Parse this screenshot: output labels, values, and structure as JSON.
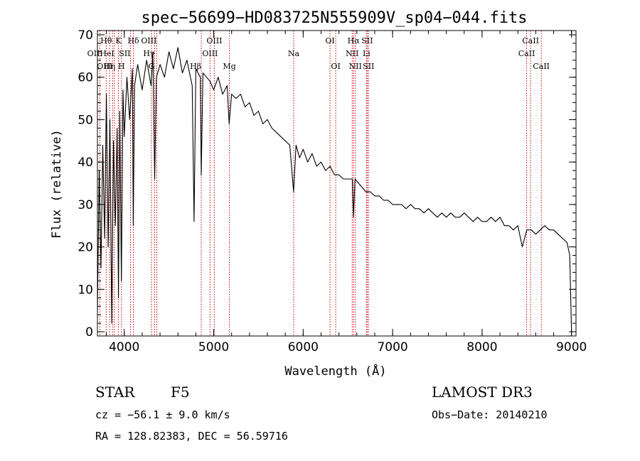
{
  "chart_data": {
    "type": "line",
    "title": "spec−56699−HD083725N555909V_sp04−044.fits",
    "xlabel": "Wavelength (Å)",
    "ylabel": "Flux (relative)",
    "xlim": [
      3700,
      9050
    ],
    "ylim": [
      -1,
      71
    ],
    "x_ticks": [
      4000,
      5000,
      6000,
      7000,
      8000,
      9000
    ],
    "y_ticks": [
      0,
      10,
      20,
      30,
      40,
      50,
      60,
      70
    ],
    "series": [
      {
        "name": "flux",
        "color": "#000000",
        "points": [
          [
            3700,
            5
          ],
          [
            3720,
            38
          ],
          [
            3740,
            15
          ],
          [
            3760,
            44
          ],
          [
            3780,
            22
          ],
          [
            3800,
            56
          ],
          [
            3820,
            20
          ],
          [
            3840,
            50
          ],
          [
            3860,
            2
          ],
          [
            3880,
            45
          ],
          [
            3900,
            25
          ],
          [
            3920,
            48
          ],
          [
            3935,
            8
          ],
          [
            3950,
            52
          ],
          [
            3968,
            12
          ],
          [
            3985,
            57
          ],
          [
            4000,
            46
          ],
          [
            4030,
            60
          ],
          [
            4060,
            50
          ],
          [
            4090,
            62
          ],
          [
            4101,
            25
          ],
          [
            4115,
            58
          ],
          [
            4150,
            63
          ],
          [
            4200,
            57
          ],
          [
            4250,
            64
          ],
          [
            4300,
            58
          ],
          [
            4320,
            66
          ],
          [
            4340,
            36
          ],
          [
            4360,
            60
          ],
          [
            4400,
            63
          ],
          [
            4450,
            60
          ],
          [
            4500,
            66
          ],
          [
            4550,
            62
          ],
          [
            4600,
            67
          ],
          [
            4650,
            61
          ],
          [
            4700,
            64
          ],
          [
            4760,
            58
          ],
          [
            4780,
            26
          ],
          [
            4800,
            62
          ],
          [
            4850,
            60
          ],
          [
            4861,
            37
          ],
          [
            4880,
            61
          ],
          [
            4920,
            60
          ],
          [
            4960,
            59
          ],
          [
            5000,
            57
          ],
          [
            5050,
            60
          ],
          [
            5100,
            56
          ],
          [
            5150,
            58
          ],
          [
            5172,
            49
          ],
          [
            5200,
            56
          ],
          [
            5250,
            55
          ],
          [
            5300,
            56
          ],
          [
            5350,
            53
          ],
          [
            5400,
            54
          ],
          [
            5450,
            51
          ],
          [
            5500,
            52
          ],
          [
            5550,
            49
          ],
          [
            5600,
            50
          ],
          [
            5650,
            48
          ],
          [
            5700,
            47
          ],
          [
            5750,
            46
          ],
          [
            5800,
            45
          ],
          [
            5850,
            44
          ],
          [
            5893,
            33
          ],
          [
            5920,
            44
          ],
          [
            5960,
            41
          ],
          [
            6000,
            43
          ],
          [
            6050,
            40
          ],
          [
            6100,
            42
          ],
          [
            6150,
            39
          ],
          [
            6200,
            40
          ],
          [
            6250,
            38
          ],
          [
            6300,
            39
          ],
          [
            6350,
            37
          ],
          [
            6400,
            37
          ],
          [
            6450,
            36
          ],
          [
            6500,
            36
          ],
          [
            6550,
            36
          ],
          [
            6563,
            27
          ],
          [
            6580,
            36
          ],
          [
            6620,
            35
          ],
          [
            6660,
            34
          ],
          [
            6700,
            33
          ],
          [
            6750,
            33
          ],
          [
            6800,
            32
          ],
          [
            6850,
            32
          ],
          [
            6900,
            31
          ],
          [
            6950,
            31
          ],
          [
            7000,
            30
          ],
          [
            7050,
            30
          ],
          [
            7100,
            30
          ],
          [
            7150,
            29
          ],
          [
            7200,
            30
          ],
          [
            7250,
            29
          ],
          [
            7300,
            29
          ],
          [
            7350,
            28
          ],
          [
            7400,
            29
          ],
          [
            7450,
            28
          ],
          [
            7500,
            27
          ],
          [
            7550,
            28
          ],
          [
            7600,
            27
          ],
          [
            7650,
            28
          ],
          [
            7700,
            27
          ],
          [
            7750,
            27
          ],
          [
            7800,
            28
          ],
          [
            7850,
            27
          ],
          [
            7900,
            26
          ],
          [
            7950,
            27
          ],
          [
            8000,
            26
          ],
          [
            8050,
            26
          ],
          [
            8100,
            27
          ],
          [
            8150,
            26
          ],
          [
            8200,
            27
          ],
          [
            8250,
            25
          ],
          [
            8300,
            25
          ],
          [
            8350,
            24
          ],
          [
            8400,
            25
          ],
          [
            8450,
            20
          ],
          [
            8500,
            24
          ],
          [
            8550,
            24
          ],
          [
            8600,
            23
          ],
          [
            8650,
            24
          ],
          [
            8700,
            25
          ],
          [
            8750,
            24
          ],
          [
            8800,
            24
          ],
          [
            8850,
            23
          ],
          [
            8900,
            22
          ],
          [
            8950,
            21
          ],
          [
            8980,
            18
          ],
          [
            9000,
            0
          ]
        ]
      }
    ],
    "lines": [
      {
        "label": "Hθ",
        "x": 3798,
        "row": 0,
        "align": "middle"
      },
      {
        "label": "OII",
        "x": 3727,
        "row": 1,
        "align": "end"
      },
      {
        "label": "HeI",
        "x": 3889,
        "row": 1,
        "align": "end"
      },
      {
        "label": "OIII",
        "x": 3869,
        "row": 2,
        "align": "end"
      },
      {
        "label": "Hη",
        "x": 3835,
        "row": 2,
        "align": "middle"
      },
      {
        "label": "K",
        "x": 3934,
        "row": 0,
        "align": "middle"
      },
      {
        "label": "H",
        "x": 3969,
        "row": 2,
        "align": "middle"
      },
      {
        "label": "SII",
        "x": 4070,
        "row": 1,
        "align": "end"
      },
      {
        "label": "Hδ",
        "x": 4102,
        "row": 0,
        "align": "middle"
      },
      {
        "label": "OIII",
        "x": 4363,
        "row": 0,
        "align": "end"
      },
      {
        "label": "Hγ",
        "x": 4340,
        "row": 1,
        "align": "end"
      },
      {
        "label": "G",
        "x": 4304,
        "row": 2,
        "align": "middle"
      },
      {
        "label": "Hβ",
        "x": 4861,
        "row": 2,
        "align": "end"
      },
      {
        "label": "OIII",
        "x": 5007,
        "row": 0,
        "align": "middle"
      },
      {
        "label": "OIII",
        "x": 4959,
        "row": 1,
        "align": "middle"
      },
      {
        "label": "Mg",
        "x": 5175,
        "row": 2,
        "align": "middle"
      },
      {
        "label": "Na",
        "x": 5894,
        "row": 1,
        "align": "middle"
      },
      {
        "label": "OI",
        "x": 6300,
        "row": 0,
        "align": "middle"
      },
      {
        "label": "OI",
        "x": 6364,
        "row": 2,
        "align": "middle"
      },
      {
        "label": "Hα",
        "x": 6563,
        "row": 0,
        "align": "middle"
      },
      {
        "label": "NII",
        "x": 6548,
        "row": 1,
        "align": "middle"
      },
      {
        "label": "NII",
        "x": 6583,
        "row": 2,
        "align": "middle"
      },
      {
        "label": "SII",
        "x": 6716,
        "row": 0,
        "align": "middle"
      },
      {
        "label": "Li",
        "x": 6708,
        "row": 1,
        "align": "middle"
      },
      {
        "label": "SII",
        "x": 6731,
        "row": 2,
        "align": "middle"
      },
      {
        "label": "CaII",
        "x": 8542,
        "row": 0,
        "align": "middle"
      },
      {
        "label": "CaII",
        "x": 8498,
        "row": 1,
        "align": "middle"
      },
      {
        "label": "CaII",
        "x": 8662,
        "row": 2,
        "align": "middle"
      }
    ]
  },
  "info": {
    "class": "STAR",
    "subclass": "F5",
    "survey": "LAMOST DR3",
    "cz": "cz = −56.1 ± 9.0 km/s",
    "obs_date": "Obs−Date: 20140210",
    "coords": "RA = 128.82383, DEC =  56.59716"
  },
  "colors": {
    "line_marker": "#cc0000",
    "spectrum": "#000000"
  }
}
